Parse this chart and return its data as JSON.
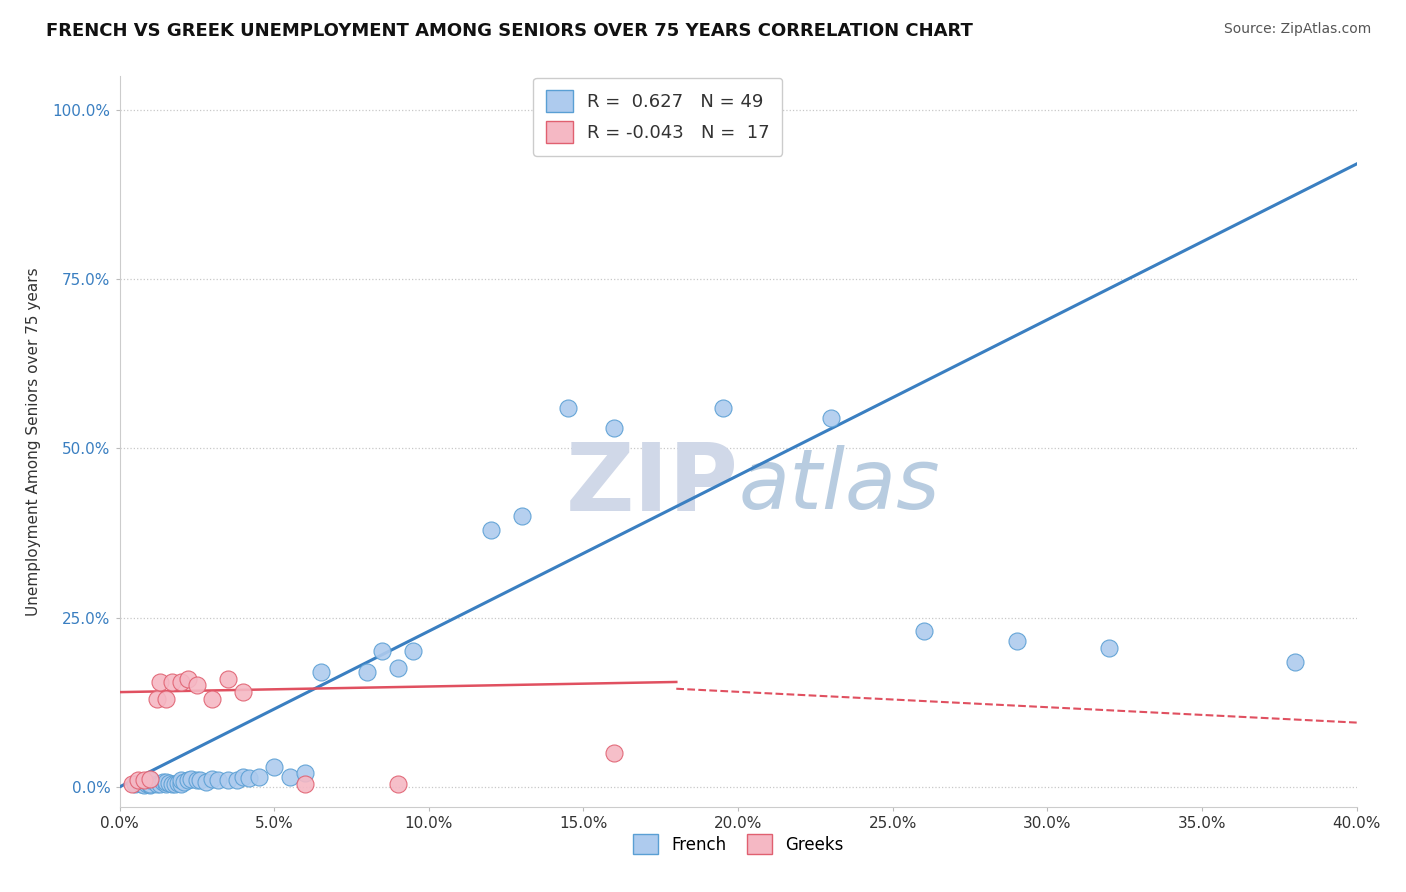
{
  "title": "FRENCH VS GREEK UNEMPLOYMENT AMONG SENIORS OVER 75 YEARS CORRELATION CHART",
  "source": "Source: ZipAtlas.com",
  "ylabel": "Unemployment Among Seniors over 75 years",
  "xlim": [
    0.0,
    0.4
  ],
  "ylim": [
    -0.03,
    1.05
  ],
  "xticks": [
    0.0,
    0.05,
    0.1,
    0.15,
    0.2,
    0.25,
    0.3,
    0.35,
    0.4
  ],
  "yticks": [
    0.0,
    0.25,
    0.5,
    0.75,
    1.0
  ],
  "french_R": 0.627,
  "french_N": 49,
  "greek_R": -0.043,
  "greek_N": 17,
  "french_color": "#aecbee",
  "french_edge_color": "#5a9fd4",
  "greek_color": "#f5b8c4",
  "greek_edge_color": "#e06070",
  "french_line_color": "#3a7fc1",
  "greek_line_color": "#e05060",
  "watermark_color": "#cdd9ed",
  "french_line": [
    0.0,
    0.0,
    0.4,
    0.92
  ],
  "greek_line_solid": [
    0.0,
    0.14,
    0.18,
    0.155
  ],
  "greek_line_dashed": [
    0.18,
    0.145,
    0.4,
    0.095
  ],
  "french_x": [
    0.005,
    0.007,
    0.008,
    0.009,
    0.01,
    0.01,
    0.01,
    0.012,
    0.013,
    0.014,
    0.015,
    0.015,
    0.016,
    0.017,
    0.018,
    0.019,
    0.02,
    0.02,
    0.021,
    0.022,
    0.023,
    0.025,
    0.026,
    0.028,
    0.03,
    0.032,
    0.035,
    0.038,
    0.04,
    0.042,
    0.045,
    0.05,
    0.055,
    0.06,
    0.065,
    0.08,
    0.085,
    0.09,
    0.095,
    0.12,
    0.13,
    0.145,
    0.16,
    0.195,
    0.23,
    0.26,
    0.29,
    0.32,
    0.38
  ],
  "french_y": [
    0.005,
    0.005,
    0.003,
    0.004,
    0.003,
    0.005,
    0.01,
    0.005,
    0.005,
    0.007,
    0.005,
    0.008,
    0.006,
    0.005,
    0.005,
    0.006,
    0.005,
    0.01,
    0.008,
    0.01,
    0.012,
    0.01,
    0.01,
    0.008,
    0.012,
    0.01,
    0.01,
    0.01,
    0.015,
    0.013,
    0.015,
    0.03,
    0.015,
    0.02,
    0.17,
    0.17,
    0.2,
    0.175,
    0.2,
    0.38,
    0.4,
    0.56,
    0.53,
    0.56,
    0.545,
    0.23,
    0.215,
    0.205,
    0.185
  ],
  "greek_x": [
    0.004,
    0.006,
    0.008,
    0.01,
    0.012,
    0.013,
    0.015,
    0.017,
    0.02,
    0.022,
    0.025,
    0.03,
    0.035,
    0.04,
    0.06,
    0.09,
    0.16
  ],
  "greek_y": [
    0.005,
    0.01,
    0.01,
    0.012,
    0.13,
    0.155,
    0.13,
    0.155,
    0.155,
    0.16,
    0.15,
    0.13,
    0.16,
    0.14,
    0.005,
    0.005,
    0.05
  ]
}
